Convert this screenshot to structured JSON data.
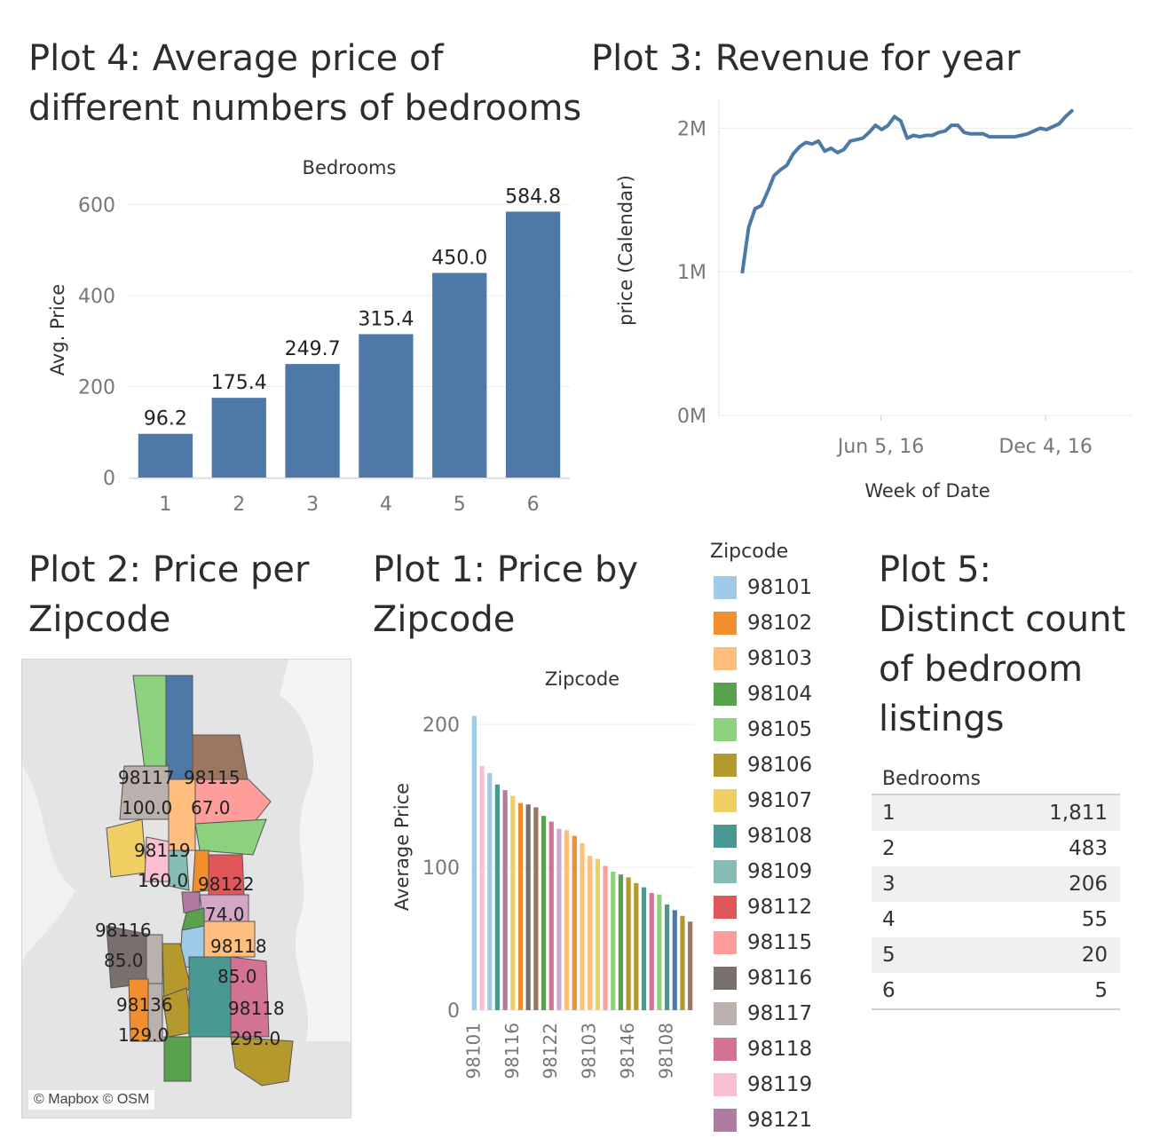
{
  "titles": {
    "plot4": "Plot 4: Average price of different numbers of bedrooms",
    "plot4_line1": "Plot 4: Average price of",
    "plot4_line2": "different numbers of bedrooms",
    "plot3": "Plot 3: Revenue for year",
    "plot2_line1": "Plot 2: Price per",
    "plot2_line2": "Zipcode",
    "plot1_line1": "Plot 1: Price by",
    "plot1_line2": "Zipcode",
    "plot5_line1": "Plot 5:",
    "plot5_line2": "Distinct count",
    "plot5_line3": "of bedroom",
    "plot5_line4": "listings"
  },
  "chart_data": [
    {
      "id": "plot4",
      "type": "bar",
      "top_header": "Bedrooms",
      "ylabel": "Avg. Price",
      "categories": [
        "1",
        "2",
        "3",
        "4",
        "5",
        "6"
      ],
      "values": [
        96.2,
        175.4,
        249.7,
        315.4,
        450.0,
        584.8
      ],
      "value_labels": [
        "96.2",
        "175.4",
        "249.7",
        "315.4",
        "450.0",
        "584.8"
      ],
      "yticks": [
        "0",
        "200",
        "400",
        "600"
      ],
      "ytick_values": [
        0,
        200,
        400,
        600
      ],
      "ylim": [
        0,
        650
      ],
      "color": "#4e79a7",
      "grid": true
    },
    {
      "id": "plot3",
      "type": "line",
      "xlabel": "Week of Date",
      "ylabel": "price (Calendar)",
      "yticks": [
        "0M",
        "1M",
        "2M"
      ],
      "ytick_values": [
        0,
        1000000,
        2000000
      ],
      "xticks": [
        "Jun 5, 16",
        "Dec 4, 16"
      ],
      "x": [
        "2016-01-04",
        "2016-01-11",
        "2016-01-18",
        "2016-01-25",
        "2016-02-01",
        "2016-02-08",
        "2016-02-15",
        "2016-02-22",
        "2016-02-29",
        "2016-03-07",
        "2016-03-14",
        "2016-03-21",
        "2016-03-28",
        "2016-04-04",
        "2016-04-11",
        "2016-04-18",
        "2016-04-25",
        "2016-05-02",
        "2016-05-09",
        "2016-05-16",
        "2016-05-23",
        "2016-05-30",
        "2016-06-06",
        "2016-06-13",
        "2016-06-20",
        "2016-06-27",
        "2016-07-04",
        "2016-07-11",
        "2016-07-18",
        "2016-07-25",
        "2016-08-01",
        "2016-08-08",
        "2016-08-15",
        "2016-08-22",
        "2016-08-29",
        "2016-09-05",
        "2016-09-12",
        "2016-09-19",
        "2016-09-26",
        "2016-10-03",
        "2016-10-10",
        "2016-10-17",
        "2016-10-24",
        "2016-10-31",
        "2016-11-07",
        "2016-11-14",
        "2016-11-21",
        "2016-11-28",
        "2016-12-05",
        "2016-12-12",
        "2016-12-19",
        "2016-12-26",
        "2017-01-02"
      ],
      "values": [
        1000000,
        1310000,
        1440000,
        1460000,
        1560000,
        1670000,
        1710000,
        1740000,
        1820000,
        1870000,
        1900000,
        1890000,
        1910000,
        1840000,
        1860000,
        1830000,
        1850000,
        1910000,
        1920000,
        1930000,
        1970000,
        2020000,
        1990000,
        2020000,
        2080000,
        2050000,
        1930000,
        1950000,
        1940000,
        1950000,
        1950000,
        1970000,
        1980000,
        2020000,
        2020000,
        1970000,
        1960000,
        1960000,
        1960000,
        1940000,
        1940000,
        1940000,
        1940000,
        1940000,
        1950000,
        1960000,
        1980000,
        2000000,
        1990000,
        2010000,
        2030000,
        2080000,
        2120000
      ],
      "ylim": [
        0,
        2200000
      ],
      "color": "#4e79a7",
      "grid": true
    },
    {
      "id": "plot1",
      "type": "bar",
      "top_header": "Zipcode",
      "ylabel": "Average Price",
      "yticks": [
        "0",
        "100",
        "200"
      ],
      "ytick_values": [
        0,
        100,
        200
      ],
      "ylim": [
        0,
        215
      ],
      "xtick_labels": [
        "98101",
        "98116",
        "98122",
        "98103",
        "98146",
        "98108"
      ],
      "xtick_every": 5,
      "values": [
        206,
        171,
        166,
        158,
        154,
        150,
        145,
        144,
        142,
        136,
        132,
        127,
        126,
        122,
        117,
        108,
        106,
        101,
        97,
        95,
        93,
        89,
        86,
        82,
        81,
        74,
        70,
        66,
        62
      ],
      "colors": [
        "#a0cbe8",
        "#fabfd2",
        "#a0cbe8",
        "#499894",
        "#b07aa1",
        "#f1ce63",
        "#f28e2b",
        "#79706e",
        "#9d7660",
        "#59a14f",
        "#d37295",
        "#d4a6c8",
        "#ffbe7d",
        "#f28e2b",
        "#ffbe7d",
        "#ffbe7d",
        "#f1ce63",
        "#ff9d9a",
        "#8cd17d",
        "#59a14f",
        "#b6992d",
        "#b6992d",
        "#499894",
        "#d37295",
        "#8cd17d",
        "#499894",
        "#4e79a7",
        "#b6992d",
        "#9d7660"
      ]
    }
  ],
  "legend": {
    "title": "Zipcode",
    "items": [
      {
        "label": "98101",
        "color": "#a0cbe8"
      },
      {
        "label": "98102",
        "color": "#f28e2b"
      },
      {
        "label": "98103",
        "color": "#ffbe7d"
      },
      {
        "label": "98104",
        "color": "#59a14f"
      },
      {
        "label": "98105",
        "color": "#8cd17d"
      },
      {
        "label": "98106",
        "color": "#b6992d"
      },
      {
        "label": "98107",
        "color": "#f1ce63"
      },
      {
        "label": "98108",
        "color": "#499894"
      },
      {
        "label": "98109",
        "color": "#86bcb6"
      },
      {
        "label": "98112",
        "color": "#e15759"
      },
      {
        "label": "98115",
        "color": "#ff9d9a"
      },
      {
        "label": "98116",
        "color": "#79706e"
      },
      {
        "label": "98117",
        "color": "#bab0ac"
      },
      {
        "label": "98118",
        "color": "#d37295"
      },
      {
        "label": "98119",
        "color": "#fabfd2"
      },
      {
        "label": "98121",
        "color": "#b07aa1"
      }
    ]
  },
  "map": {
    "copyright": "© Mapbox © OSM",
    "labels": [
      {
        "zip": "98117",
        "price": "100.0"
      },
      {
        "zip": "98115",
        "price": "67.0"
      },
      {
        "zip": "98119",
        "price": "160.0"
      },
      {
        "zip": "98122",
        "price": "74.0"
      },
      {
        "zip": "98116",
        "price": "85.0"
      },
      {
        "zip": "98118",
        "price": "85.0"
      },
      {
        "zip": "98136",
        "price": "129.0"
      },
      {
        "zip": "98118",
        "price": "295.0"
      }
    ]
  },
  "table": {
    "header": "Bedrooms",
    "rows": [
      {
        "bedrooms": "1",
        "count": "1,811"
      },
      {
        "bedrooms": "2",
        "count": "483"
      },
      {
        "bedrooms": "3",
        "count": "206"
      },
      {
        "bedrooms": "4",
        "count": "55"
      },
      {
        "bedrooms": "5",
        "count": "20"
      },
      {
        "bedrooms": "6",
        "count": "5"
      }
    ]
  }
}
